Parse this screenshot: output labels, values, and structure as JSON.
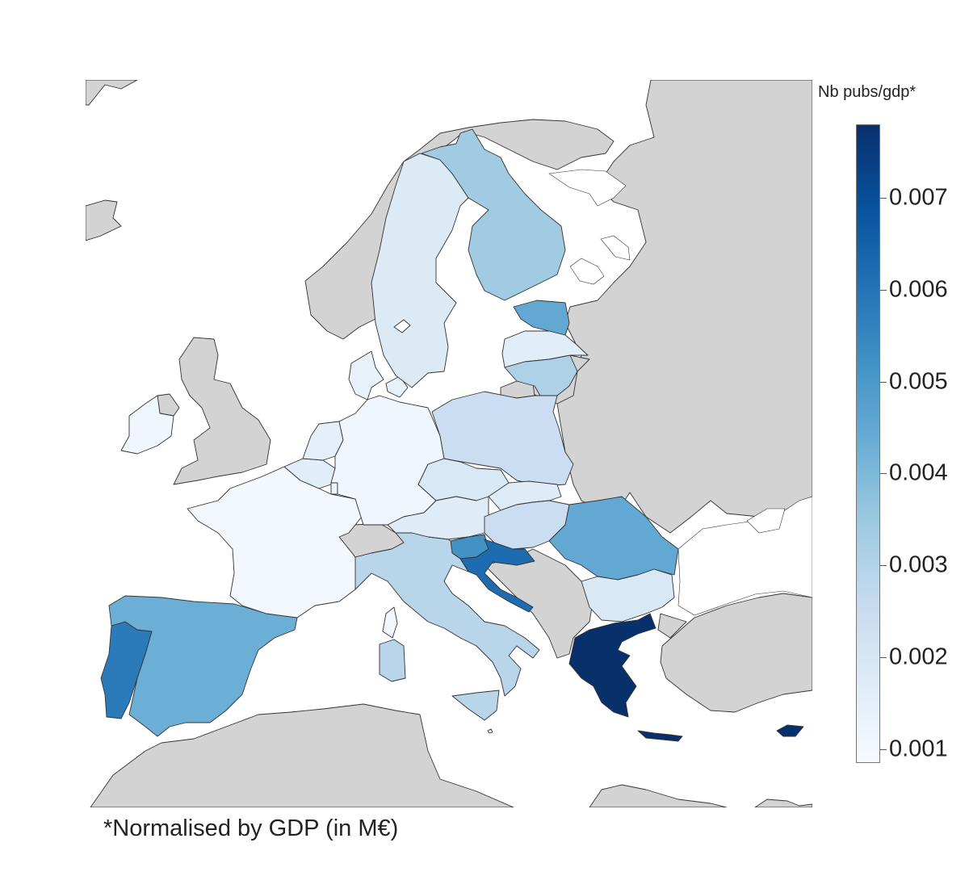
{
  "legend": {
    "title": "Nb pubs/gdp*",
    "ticks": [
      "0.001",
      "0.002",
      "0.003",
      "0.004",
      "0.005",
      "0.006",
      "0.007"
    ],
    "min": 0.00085,
    "max": 0.0078,
    "colors": [
      "#f7fbff",
      "#deebf7",
      "#c6dbef",
      "#9ecae1",
      "#6baed6",
      "#4292c6",
      "#2171b5",
      "#08519c",
      "#08306b"
    ]
  },
  "footnote": "*Normalised by GDP (in M€)",
  "colors": {
    "non_eu": "#d3d3d3",
    "water": "#ffffff",
    "border": "#333333"
  },
  "regions": [
    {
      "name": "Ireland",
      "eu": true,
      "value": 0.0011
    },
    {
      "name": "Portugal",
      "eu": true,
      "value": 0.0058
    },
    {
      "name": "Spain",
      "eu": true,
      "value": 0.0043
    },
    {
      "name": "France",
      "eu": true,
      "value": 0.001
    },
    {
      "name": "Belgium",
      "eu": true,
      "value": 0.0016
    },
    {
      "name": "Netherlands",
      "eu": true,
      "value": 0.0015
    },
    {
      "name": "Luxembourg",
      "eu": true,
      "value": 0.0012
    },
    {
      "name": "Germany",
      "eu": true,
      "value": 0.0011
    },
    {
      "name": "Denmark",
      "eu": true,
      "value": 0.0014
    },
    {
      "name": "Sweden",
      "eu": true,
      "value": 0.0018
    },
    {
      "name": "Finland",
      "eu": true,
      "value": 0.0034
    },
    {
      "name": "Estonia",
      "eu": true,
      "value": 0.0045
    },
    {
      "name": "Latvia",
      "eu": true,
      "value": 0.0016
    },
    {
      "name": "Lithuania",
      "eu": true,
      "value": 0.0031
    },
    {
      "name": "Poland",
      "eu": true,
      "value": 0.0024
    },
    {
      "name": "Czechia",
      "eu": true,
      "value": 0.0019
    },
    {
      "name": "Slovakia",
      "eu": true,
      "value": 0.0017
    },
    {
      "name": "Austria",
      "eu": true,
      "value": 0.0017
    },
    {
      "name": "Hungary",
      "eu": true,
      "value": 0.0024
    },
    {
      "name": "Slovenia",
      "eu": true,
      "value": 0.0052
    },
    {
      "name": "Croatia",
      "eu": true,
      "value": 0.0062
    },
    {
      "name": "Italy",
      "eu": true,
      "value": 0.0029
    },
    {
      "name": "Romania",
      "eu": true,
      "value": 0.0045
    },
    {
      "name": "Bulgaria",
      "eu": true,
      "value": 0.0019
    },
    {
      "name": "Greece",
      "eu": true,
      "value": 0.0078
    },
    {
      "name": "Cyprus",
      "eu": true,
      "value": 0.0078
    },
    {
      "name": "Malta",
      "eu": true,
      "value": 0.0012
    }
  ]
}
